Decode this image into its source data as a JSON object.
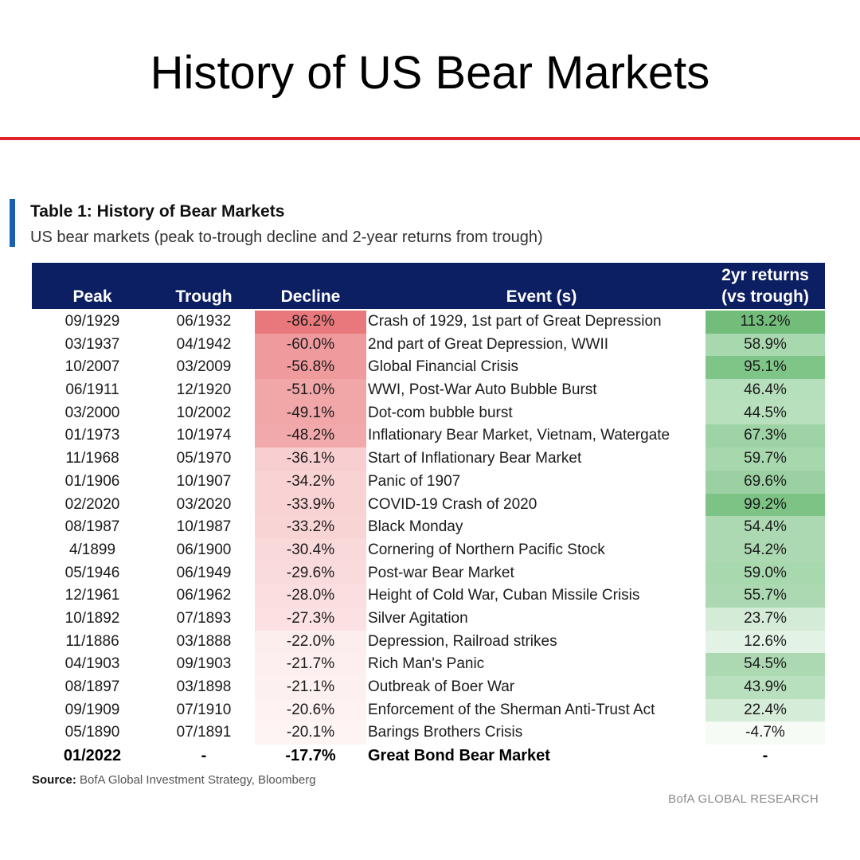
{
  "page": {
    "title": "History of US Bear Markets"
  },
  "table": {
    "title": "Table 1: History of Bear Markets",
    "subtitle": "US bear markets (peak to-trough decline and 2-year returns from trough)",
    "headers": {
      "peak": "Peak",
      "trough": "Trough",
      "decline": "Decline",
      "event": "Event (s)",
      "returns_line1": "2yr returns",
      "returns_line2": "(vs trough)"
    },
    "rows": [
      {
        "peak": "09/1929",
        "trough": "06/1932",
        "decline": "-86.2%",
        "event": "Crash of 1929, 1st part of Great Depression",
        "ret": "113.2%",
        "decline_color": "#e8787c",
        "ret_color": "#72bd7a"
      },
      {
        "peak": "03/1937",
        "trough": "04/1942",
        "decline": "-60.0%",
        "event": "2nd part of Great Depression, WWII",
        "ret": "58.9%",
        "decline_color": "#ef9a9d",
        "ret_color": "#a8d8ae"
      },
      {
        "peak": "10/2007",
        "trough": "03/2009",
        "decline": "-56.8%",
        "event": "Global Financial Crisis",
        "ret": "95.1%",
        "decline_color": "#ef9a9d",
        "ret_color": "#80c588"
      },
      {
        "peak": "06/1911",
        "trough": "12/1920",
        "decline": "-51.0%",
        "event": "WWI, Post-War Auto Bubble Burst",
        "ret": "46.4%",
        "decline_color": "#f1a6a8",
        "ret_color": "#b6dfbb"
      },
      {
        "peak": "03/2000",
        "trough": "10/2002",
        "decline": "-49.1%",
        "event": "Dot-com bubble burst",
        "ret": "44.5%",
        "decline_color": "#f1a6a8",
        "ret_color": "#b8e0bd"
      },
      {
        "peak": "01/1973",
        "trough": "10/1974",
        "decline": "-48.2%",
        "event": "Inflationary Bear Market, Vietnam, Watergate",
        "ret": "67.3%",
        "decline_color": "#f2a9ab",
        "ret_color": "#9ed3a5"
      },
      {
        "peak": "11/1968",
        "trough": "05/1970",
        "decline": "-36.1%",
        "event": "Start of Inflationary Bear Market",
        "ret": "59.7%",
        "decline_color": "#f8ced0",
        "ret_color": "#a7d7ad"
      },
      {
        "peak": "01/1906",
        "trough": "10/1907",
        "decline": "-34.2%",
        "event": "Panic of 1907",
        "ret": "69.6%",
        "decline_color": "#f9d2d3",
        "ret_color": "#9bd1a2"
      },
      {
        "peak": "02/2020",
        "trough": "03/2020",
        "decline": "-33.9%",
        "event": "COVID-19 Crash of 2020",
        "ret": "99.2%",
        "decline_color": "#f9d3d4",
        "ret_color": "#7cc385"
      },
      {
        "peak": "08/1987",
        "trough": "10/1987",
        "decline": "-33.2%",
        "event": "Black Monday",
        "ret": "54.4%",
        "decline_color": "#f9d4d5",
        "ret_color": "#acd9b1"
      },
      {
        "peak": "4/1899",
        "trough": "06/1900",
        "decline": "-30.4%",
        "event": "Cornering of Northern Pacific Stock",
        "ret": "54.2%",
        "decline_color": "#fad9da",
        "ret_color": "#acd9b1"
      },
      {
        "peak": "05/1946",
        "trough": "06/1949",
        "decline": "-29.6%",
        "event": "Post-war Bear Market",
        "ret": "59.0%",
        "decline_color": "#fadbdc",
        "ret_color": "#a8d8ae"
      },
      {
        "peak": "12/1961",
        "trough": "06/1962",
        "decline": "-28.0%",
        "event": "Height of Cold War, Cuban Missile Crisis",
        "ret": "55.7%",
        "decline_color": "#fbdfe0",
        "ret_color": "#acd9b1"
      },
      {
        "peak": "10/1892",
        "trough": "07/1893",
        "decline": "-27.3%",
        "event": "Silver Agitation",
        "ret": "23.7%",
        "decline_color": "#fbe1e2",
        "ret_color": "#d4ecd7"
      },
      {
        "peak": "11/1886",
        "trough": "03/1888",
        "decline": "-22.0%",
        "event": "Depression, Railroad strikes",
        "ret": "12.6%",
        "decline_color": "#fdeeee",
        "ret_color": "#e2f2e4"
      },
      {
        "peak": "04/1903",
        "trough": "09/1903",
        "decline": "-21.7%",
        "event": "Rich Man's Panic",
        "ret": "54.5%",
        "decline_color": "#fdefef",
        "ret_color": "#acd9b1"
      },
      {
        "peak": "08/1897",
        "trough": "03/1898",
        "decline": "-21.1%",
        "event": "Outbreak of Boer War",
        "ret": "43.9%",
        "decline_color": "#fdf0f0",
        "ret_color": "#b9e0be"
      },
      {
        "peak": "09/1909",
        "trough": "07/1910",
        "decline": "-20.6%",
        "event": "Enforcement of the Sherman Anti-Trust Act",
        "ret": "22.4%",
        "decline_color": "#fef2f2",
        "ret_color": "#d5edd8"
      },
      {
        "peak": "05/1890",
        "trough": "07/1891",
        "decline": "-20.1%",
        "event": "Barings Brothers Crisis",
        "ret": "-4.7%",
        "decline_color": "#fef4f4",
        "ret_color": "#f6fbf6"
      },
      {
        "peak": "01/2022",
        "trough": "-",
        "decline": "-17.7%",
        "event": "Great Bond Bear Market",
        "ret": "-",
        "decline_color": "#ffffff",
        "ret_color": "#ffffff",
        "bold": true
      }
    ],
    "source_label": "Source:",
    "source_text": "BofA Global Investment Strategy, Bloomberg",
    "brand": "BofA GLOBAL RESEARCH"
  },
  "colors": {
    "header_bg": "#0d1f63",
    "accent_blue": "#1b5fb4",
    "rule_red": "#e0262b"
  }
}
